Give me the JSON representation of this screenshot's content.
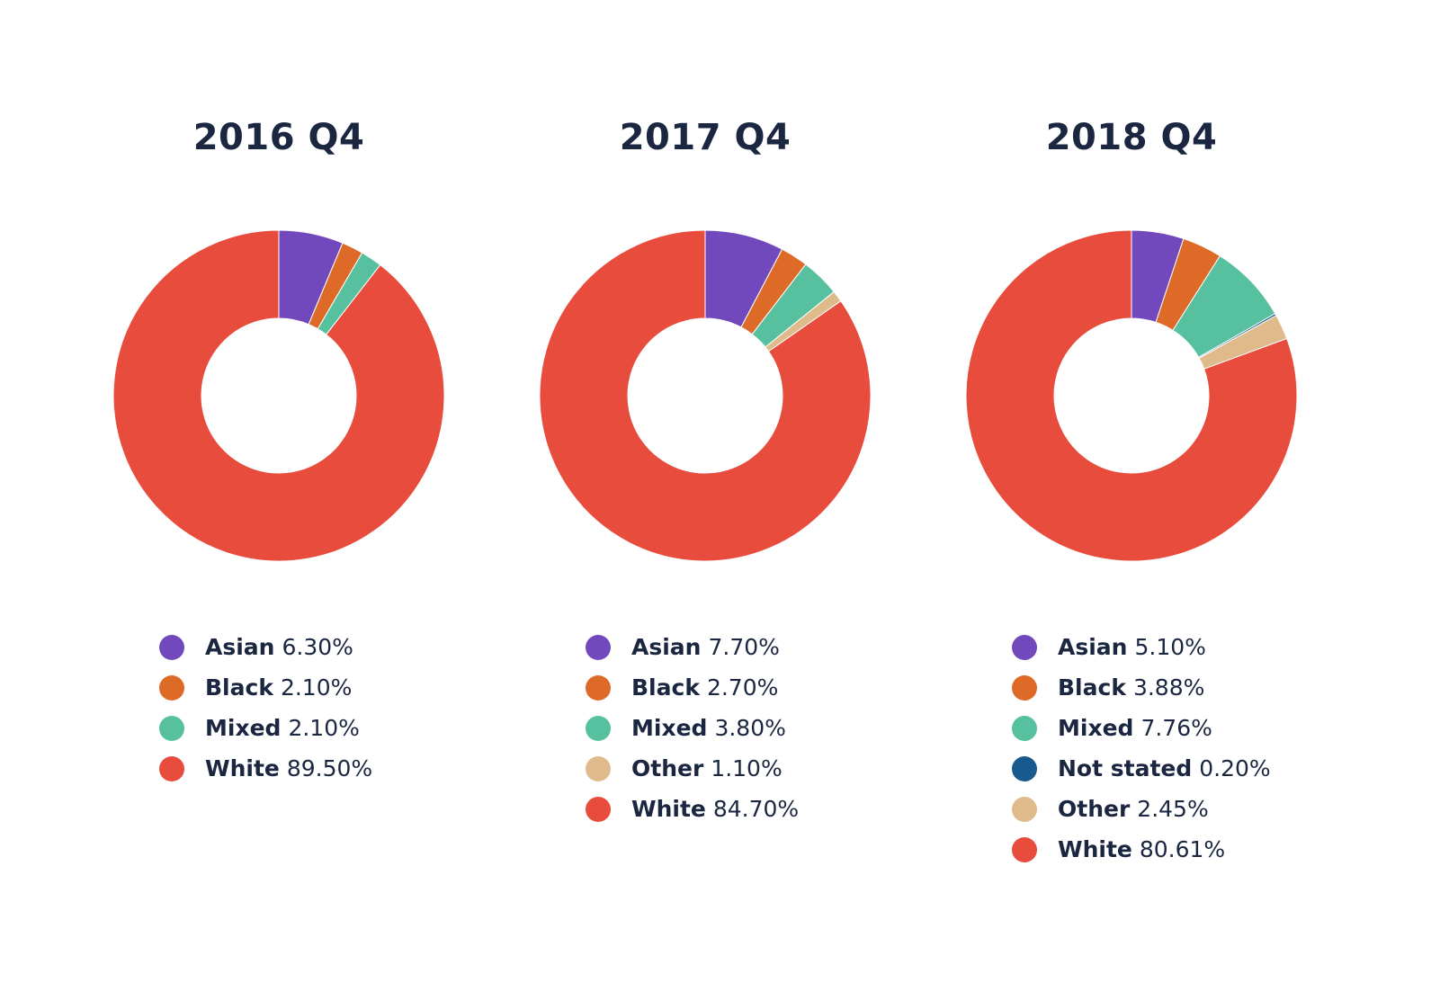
{
  "colors": {
    "Asian": "#7249bd",
    "Black": "#de6a28",
    "Mixed": "#56c09f",
    "Not stated": "#185a8e",
    "Other": "#dfbb8b",
    "White": "#e84c3d"
  },
  "chart_data": [
    {
      "type": "pie",
      "title": "2016 Q4",
      "donut": true,
      "series": [
        {
          "name": "Asian",
          "value": 6.3,
          "label": "6.30%"
        },
        {
          "name": "Black",
          "value": 2.1,
          "label": "2.10%"
        },
        {
          "name": "Mixed",
          "value": 2.1,
          "label": "2.10%"
        },
        {
          "name": "White",
          "value": 89.5,
          "label": "89.50%"
        }
      ]
    },
    {
      "type": "pie",
      "title": "2017 Q4",
      "donut": true,
      "series": [
        {
          "name": "Asian",
          "value": 7.7,
          "label": "7.70%"
        },
        {
          "name": "Black",
          "value": 2.7,
          "label": "2.70%"
        },
        {
          "name": "Mixed",
          "value": 3.8,
          "label": "3.80%"
        },
        {
          "name": "Other",
          "value": 1.1,
          "label": "1.10%"
        },
        {
          "name": "White",
          "value": 84.7,
          "label": "84.70%"
        }
      ]
    },
    {
      "type": "pie",
      "title": "2018 Q4",
      "donut": true,
      "series": [
        {
          "name": "Asian",
          "value": 5.1,
          "label": "5.10%"
        },
        {
          "name": "Black",
          "value": 3.88,
          "label": "3.88%"
        },
        {
          "name": "Mixed",
          "value": 7.76,
          "label": "7.76%"
        },
        {
          "name": "Not stated",
          "value": 0.2,
          "label": "0.20%"
        },
        {
          "name": "Other",
          "value": 2.45,
          "label": "2.45%"
        },
        {
          "name": "White",
          "value": 80.61,
          "label": "80.61%"
        }
      ]
    }
  ]
}
